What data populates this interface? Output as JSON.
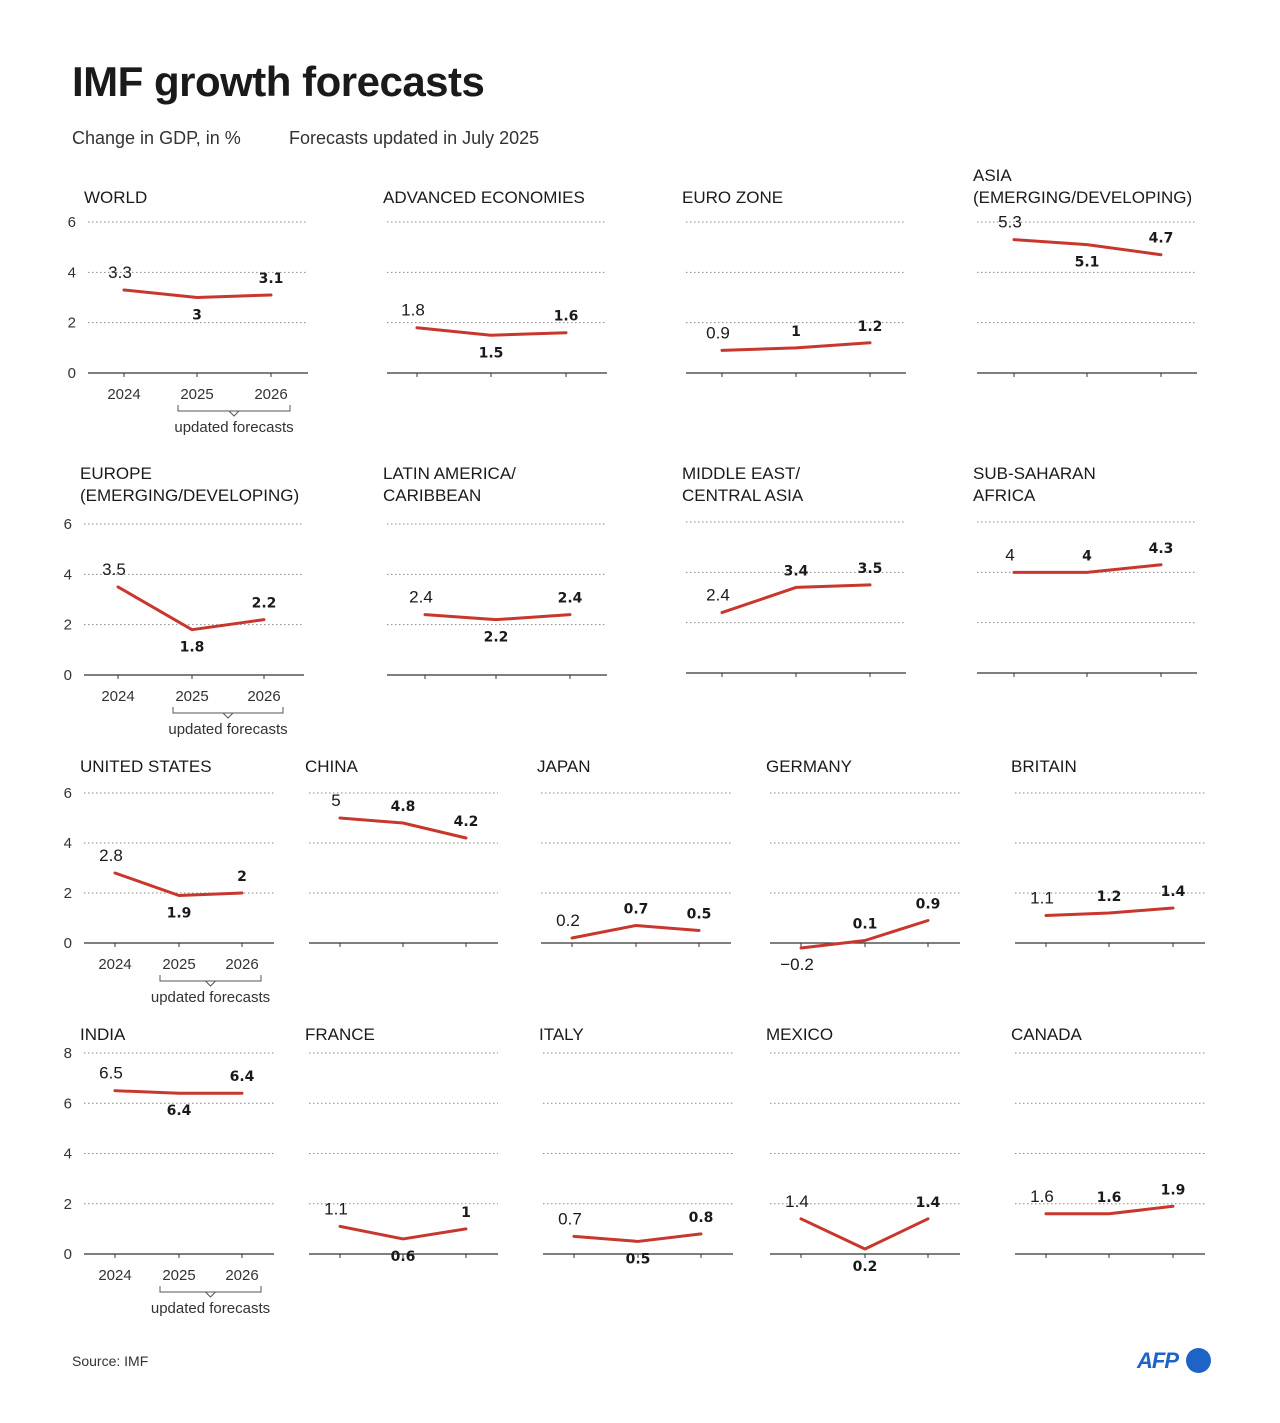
{
  "header": {
    "title": "IMF growth forecasts",
    "subtitle": "Change in GDP, in %",
    "note": "Forecasts updated in July 2025"
  },
  "footer": {
    "source": "Source: IMF",
    "logo_text": "AFP"
  },
  "colors": {
    "line": "#c8372d",
    "logo": "#1e63c8"
  },
  "axis": {
    "years": [
      "2024",
      "2025",
      "2026"
    ],
    "forecast_label": "updated forecasts"
  },
  "chart_data": [
    {
      "type": "line",
      "title": "WORLD",
      "categories": [
        "2024",
        "2025",
        "2026"
      ],
      "values": [
        3.3,
        3,
        3.1
      ],
      "labels": [
        "3.3",
        "3",
        "3.1"
      ],
      "ylim": [
        0,
        6
      ],
      "yticks": [
        0,
        2,
        4,
        6
      ],
      "show_axis_labels": true
    },
    {
      "type": "line",
      "title": "ADVANCED ECONOMIES",
      "categories": [
        "2024",
        "2025",
        "2026"
      ],
      "values": [
        1.8,
        1.5,
        1.6
      ],
      "labels": [
        "1.8",
        "1.5",
        "1.6"
      ],
      "ylim": [
        0,
        6
      ]
    },
    {
      "type": "line",
      "title": "EURO ZONE",
      "categories": [
        "2024",
        "2025",
        "2026"
      ],
      "values": [
        0.9,
        1,
        1.2
      ],
      "labels": [
        "0.9",
        "1",
        "1.2"
      ],
      "ylim": [
        0,
        6
      ]
    },
    {
      "type": "line",
      "title": "ASIA\n(EMERGING/DEVELOPING)",
      "categories": [
        "2024",
        "2025",
        "2026"
      ],
      "values": [
        5.3,
        5.1,
        4.7
      ],
      "labels": [
        "5.3",
        "5.1",
        "4.7"
      ],
      "ylim": [
        0,
        6
      ]
    },
    {
      "type": "line",
      "title": "EUROPE\n(EMERGING/DEVELOPING)",
      "categories": [
        "2024",
        "2025",
        "2026"
      ],
      "values": [
        3.5,
        1.8,
        2.2
      ],
      "labels": [
        "3.5",
        "1.8",
        "2.2"
      ],
      "ylim": [
        0,
        6
      ],
      "yticks": [
        0,
        2,
        4,
        6
      ],
      "show_axis_labels": true
    },
    {
      "type": "line",
      "title": "LATIN AMERICA/\nCARIBBEAN",
      "categories": [
        "2024",
        "2025",
        "2026"
      ],
      "values": [
        2.4,
        2.2,
        2.4
      ],
      "labels": [
        "2.4",
        "2.2",
        "2.4"
      ],
      "ylim": [
        0,
        6
      ]
    },
    {
      "type": "line",
      "title": "MIDDLE EAST/\nCENTRAL ASIA",
      "categories": [
        "2024",
        "2025",
        "2026"
      ],
      "values": [
        2.4,
        3.4,
        3.5
      ],
      "labels": [
        "2.4",
        "3.4",
        "3.5"
      ],
      "ylim": [
        0,
        6
      ]
    },
    {
      "type": "line",
      "title": "SUB-SAHARAN\nAFRICA",
      "categories": [
        "2024",
        "2025",
        "2026"
      ],
      "values": [
        4,
        4,
        4.3
      ],
      "labels": [
        "4",
        "4",
        "4.3"
      ],
      "ylim": [
        0,
        6
      ]
    },
    {
      "type": "line",
      "title": "UNITED STATES",
      "categories": [
        "2024",
        "2025",
        "2026"
      ],
      "values": [
        2.8,
        1.9,
        2
      ],
      "labels": [
        "2.8",
        "1.9",
        "2"
      ],
      "ylim": [
        0,
        6
      ],
      "yticks": [
        0,
        2,
        4,
        6
      ],
      "show_axis_labels": true
    },
    {
      "type": "line",
      "title": "CHINA",
      "categories": [
        "2024",
        "2025",
        "2026"
      ],
      "values": [
        5,
        4.8,
        4.2
      ],
      "labels": [
        "5",
        "4.8",
        "4.2"
      ],
      "ylim": [
        0,
        6
      ]
    },
    {
      "type": "line",
      "title": "JAPAN",
      "categories": [
        "2024",
        "2025",
        "2026"
      ],
      "values": [
        0.2,
        0.7,
        0.5
      ],
      "labels": [
        "0.2",
        "0.7",
        "0.5"
      ],
      "ylim": [
        0,
        6
      ]
    },
    {
      "type": "line",
      "title": "GERMANY",
      "categories": [
        "2024",
        "2025",
        "2026"
      ],
      "values": [
        -0.2,
        0.1,
        0.9
      ],
      "labels": [
        "−0.2",
        "0.1",
        "0.9"
      ],
      "ylim": [
        0,
        6
      ]
    },
    {
      "type": "line",
      "title": "BRITAIN",
      "categories": [
        "2024",
        "2025",
        "2026"
      ],
      "values": [
        1.1,
        1.2,
        1.4
      ],
      "labels": [
        "1.1",
        "1.2",
        "1.4"
      ],
      "ylim": [
        0,
        6
      ]
    },
    {
      "type": "line",
      "title": "INDIA",
      "categories": [
        "2024",
        "2025",
        "2026"
      ],
      "values": [
        6.5,
        6.4,
        6.4
      ],
      "labels": [
        "6.5",
        "6.4",
        "6.4"
      ],
      "ylim": [
        0,
        8
      ],
      "yticks": [
        0,
        2,
        4,
        6,
        8
      ],
      "show_axis_labels": true
    },
    {
      "type": "line",
      "title": "FRANCE",
      "categories": [
        "2024",
        "2025",
        "2026"
      ],
      "values": [
        1.1,
        0.6,
        1
      ],
      "labels": [
        "1.1",
        "0.6",
        "1"
      ],
      "ylim": [
        0,
        8
      ]
    },
    {
      "type": "line",
      "title": "ITALY",
      "categories": [
        "2024",
        "2025",
        "2026"
      ],
      "values": [
        0.7,
        0.5,
        0.8
      ],
      "labels": [
        "0.7",
        "0.5",
        "0.8"
      ],
      "ylim": [
        0,
        8
      ]
    },
    {
      "type": "line",
      "title": "MEXICO",
      "categories": [
        "2024",
        "2025",
        "2026"
      ],
      "values": [
        1.4,
        0.2,
        1.4
      ],
      "labels": [
        "1.4",
        "0.2",
        "1.4"
      ],
      "ylim": [
        0,
        8
      ]
    },
    {
      "type": "line",
      "title": "CANADA",
      "categories": [
        "2024",
        "2025",
        "2026"
      ],
      "values": [
        1.6,
        1.6,
        1.9
      ],
      "labels": [
        "1.6",
        "1.6",
        "1.9"
      ],
      "ylim": [
        0,
        8
      ]
    }
  ]
}
